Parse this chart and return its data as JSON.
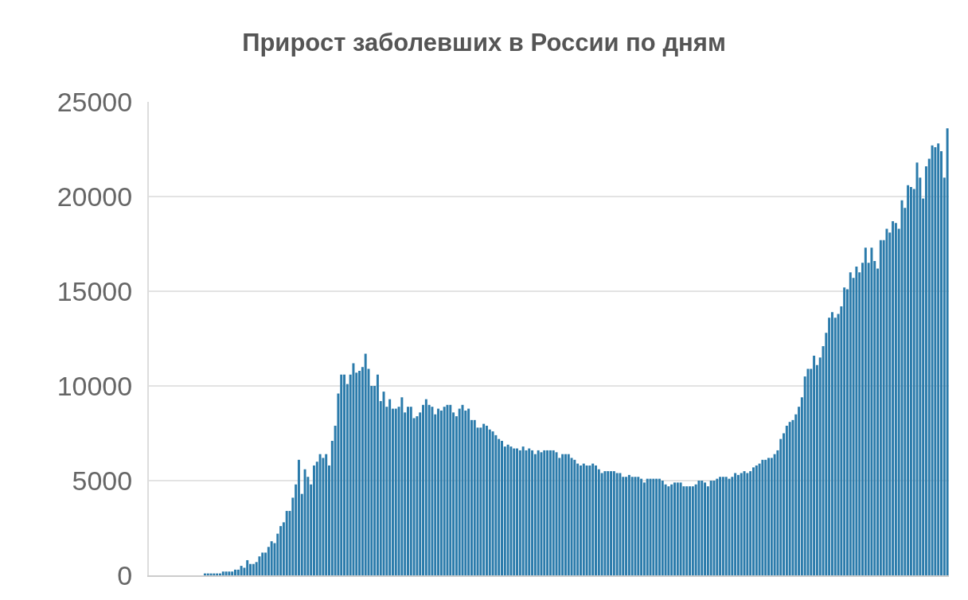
{
  "chart_data": {
    "type": "bar",
    "title": "Прирост заболевших в России по дням",
    "categories": [
      null,
      null,
      null,
      null,
      null,
      null,
      null,
      null,
      null,
      null,
      null,
      null,
      null,
      null,
      null,
      null,
      null,
      null,
      null,
      null,
      null,
      null,
      null,
      null,
      null,
      null,
      null,
      null,
      null,
      null,
      null,
      null,
      null,
      null,
      null,
      null,
      null,
      null,
      null,
      null,
      null,
      null,
      null,
      null,
      null,
      null,
      null,
      null,
      null,
      null,
      null,
      null,
      null,
      null,
      null,
      null,
      null,
      null,
      null,
      null,
      null,
      null,
      null,
      null,
      null,
      null,
      null,
      null,
      null,
      null,
      null,
      null,
      null,
      null,
      null,
      null,
      null,
      null,
      null,
      null,
      null,
      null,
      null,
      null,
      null,
      null,
      null,
      null,
      null,
      null,
      null,
      null,
      null,
      null,
      null,
      null,
      null,
      null,
      null,
      null,
      null,
      null,
      null,
      null,
      null,
      null,
      null,
      null,
      null,
      null,
      null,
      null,
      null,
      null,
      null,
      null,
      null,
      null,
      null,
      null,
      null,
      null,
      null,
      null,
      null,
      null,
      null,
      null,
      null,
      null,
      null,
      null,
      null,
      null,
      null,
      null,
      null,
      null,
      null,
      null,
      null,
      null,
      null,
      null,
      null,
      null,
      null,
      null,
      null,
      null,
      null,
      null,
      null,
      null,
      null,
      null,
      null,
      null,
      null,
      null,
      null,
      null,
      null,
      null,
      null,
      null,
      null,
      null,
      null,
      null,
      null,
      null,
      null,
      null,
      null,
      null,
      null,
      null,
      null,
      null,
      null,
      null,
      null,
      null,
      null,
      null,
      null,
      null,
      null,
      null,
      null,
      null,
      null,
      null,
      null,
      null,
      null,
      null,
      null,
      null,
      null,
      null,
      null,
      null,
      null,
      null,
      null,
      null,
      null,
      null,
      null,
      null,
      null,
      null,
      null,
      null,
      null,
      null,
      null,
      null,
      null,
      null,
      null,
      null,
      null,
      null,
      null,
      null,
      null,
      null,
      null,
      null,
      null,
      null,
      null,
      null,
      null,
      null,
      null,
      null,
      null,
      null,
      null,
      null,
      null,
      null,
      null,
      null,
      null,
      null,
      null,
      null,
      null,
      null,
      null,
      null,
      null,
      null,
      null,
      null,
      null,
      null,
      null,
      null
    ],
    "values": [
      0,
      0,
      0,
      0,
      0,
      0,
      0,
      0,
      0,
      0,
      0,
      0,
      0,
      0,
      0,
      0,
      0,
      0,
      100,
      100,
      100,
      100,
      100,
      100,
      200,
      200,
      200,
      200,
      300,
      300,
      500,
      400,
      800,
      600,
      600,
      700,
      1000,
      1200,
      1200,
      1500,
      1800,
      1700,
      2200,
      2600,
      2800,
      3400,
      3400,
      4100,
      4800,
      6100,
      4300,
      5600,
      5200,
      4800,
      5800,
      6000,
      6400,
      6200,
      6400,
      5800,
      7100,
      7900,
      9600,
      10600,
      10600,
      10100,
      10600,
      11200,
      10700,
      10800,
      11000,
      11700,
      10900,
      10000,
      10000,
      10600,
      9200,
      9700,
      8900,
      9300,
      8800,
      8800,
      8900,
      9400,
      8600,
      8900,
      8900,
      8300,
      8400,
      8600,
      9000,
      9300,
      9000,
      8900,
      8500,
      8800,
      8700,
      8900,
      9000,
      9000,
      8600,
      8400,
      8800,
      9000,
      8700,
      8800,
      8200,
      8200,
      7800,
      7800,
      8000,
      7900,
      7700,
      7600,
      7400,
      7200,
      7100,
      6800,
      6900,
      6800,
      6700,
      6700,
      6600,
      6800,
      6600,
      6700,
      6600,
      6400,
      6600,
      6500,
      6600,
      6600,
      6600,
      6600,
      6500,
      6200,
      6400,
      6400,
      6400,
      6200,
      6100,
      5900,
      5800,
      5900,
      5800,
      5800,
      5900,
      5800,
      5600,
      5400,
      5500,
      5500,
      5500,
      5500,
      5400,
      5400,
      5200,
      5200,
      5300,
      5200,
      5200,
      5200,
      5100,
      4900,
      5100,
      5100,
      5100,
      5100,
      5100,
      5000,
      4800,
      4700,
      4800,
      4900,
      4900,
      4900,
      4700,
      4700,
      4700,
      4700,
      4800,
      5000,
      5000,
      4900,
      4700,
      5000,
      5000,
      5100,
      5200,
      5200,
      5200,
      5100,
      5200,
      5400,
      5300,
      5400,
      5500,
      5400,
      5500,
      5700,
      5800,
      5900,
      6100,
      6100,
      6200,
      6200,
      6400,
      6600,
      7200,
      7500,
      7900,
      8100,
      8200,
      8500,
      8900,
      9400,
      10500,
      10900,
      10900,
      11600,
      11100,
      11500,
      12100,
      12800,
      13600,
      13900,
      13600,
      13800,
      14200,
      15200,
      15100,
      16000,
      15700,
      16300,
      16000,
      16500,
      17300,
      16500,
      17300,
      16600,
      16200,
      17700,
      17700,
      18300,
      18100,
      18700,
      18600,
      18300,
      19800,
      19400,
      20600,
      20500,
      20400,
      21800,
      21000,
      19900,
      21600,
      22000,
      22700,
      22600,
      22800,
      22400,
      21000,
      23600
    ],
    "color": "#2b7bab",
    "ylim": [
      0,
      25000
    ],
    "yticks": [
      0,
      5000,
      10000,
      15000,
      20000,
      25000
    ],
    "grid": "y",
    "tick_labels": "y"
  }
}
